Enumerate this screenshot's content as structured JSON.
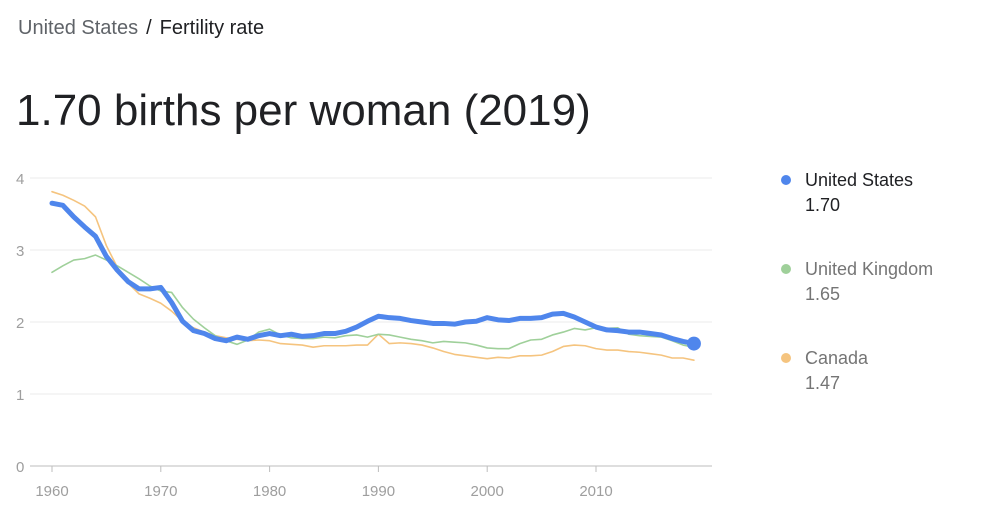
{
  "breadcrumb": {
    "parent": "United States",
    "separator": "/",
    "current": "Fertility rate"
  },
  "headline": "1.70 births per woman (2019)",
  "chart_data": {
    "type": "line",
    "x_start": 1960,
    "x_end": 2019,
    "xticks": [
      "1960",
      "1970",
      "1980",
      "1990",
      "2000",
      "2010"
    ],
    "yticks": [
      "0",
      "1",
      "2",
      "3",
      "4"
    ],
    "ylim": [
      0,
      4
    ],
    "grid": true,
    "legend_placement": "right",
    "series": [
      {
        "name": "United States",
        "latest": "1.70",
        "color": "#4f86ec",
        "values": [
          3.65,
          3.62,
          3.46,
          3.32,
          3.19,
          2.91,
          2.72,
          2.56,
          2.46,
          2.46,
          2.48,
          2.27,
          2.01,
          1.88,
          1.84,
          1.77,
          1.74,
          1.79,
          1.76,
          1.81,
          1.84,
          1.81,
          1.83,
          1.8,
          1.81,
          1.84,
          1.84,
          1.87,
          1.93,
          2.01,
          2.08,
          2.06,
          2.05,
          2.02,
          2.0,
          1.98,
          1.98,
          1.97,
          2.0,
          2.01,
          2.06,
          2.03,
          2.02,
          2.05,
          2.05,
          2.06,
          2.11,
          2.12,
          2.07,
          2.0,
          1.93,
          1.89,
          1.88,
          1.86,
          1.86,
          1.84,
          1.82,
          1.77,
          1.73,
          1.7
        ]
      },
      {
        "name": "United Kingdom",
        "latest": "1.65",
        "color": "#9fd09a",
        "values": [
          2.69,
          2.78,
          2.86,
          2.88,
          2.93,
          2.86,
          2.78,
          2.69,
          2.6,
          2.5,
          2.43,
          2.41,
          2.2,
          2.04,
          1.92,
          1.81,
          1.74,
          1.69,
          1.75,
          1.86,
          1.9,
          1.82,
          1.78,
          1.77,
          1.77,
          1.79,
          1.78,
          1.81,
          1.82,
          1.79,
          1.83,
          1.82,
          1.79,
          1.76,
          1.74,
          1.71,
          1.73,
          1.72,
          1.71,
          1.68,
          1.64,
          1.63,
          1.63,
          1.7,
          1.75,
          1.76,
          1.82,
          1.86,
          1.91,
          1.89,
          1.92,
          1.91,
          1.92,
          1.83,
          1.81,
          1.8,
          1.79,
          1.74,
          1.68,
          1.65
        ]
      },
      {
        "name": "Canada",
        "latest": "1.47",
        "color": "#f5c47f",
        "values": [
          3.81,
          3.76,
          3.69,
          3.61,
          3.46,
          3.06,
          2.76,
          2.54,
          2.39,
          2.33,
          2.26,
          2.15,
          2.01,
          1.92,
          1.86,
          1.81,
          1.78,
          1.76,
          1.74,
          1.75,
          1.74,
          1.7,
          1.69,
          1.68,
          1.65,
          1.67,
          1.67,
          1.67,
          1.68,
          1.68,
          1.83,
          1.7,
          1.71,
          1.7,
          1.68,
          1.64,
          1.59,
          1.55,
          1.53,
          1.51,
          1.49,
          1.51,
          1.5,
          1.53,
          1.53,
          1.54,
          1.59,
          1.66,
          1.68,
          1.67,
          1.63,
          1.61,
          1.61,
          1.59,
          1.58,
          1.56,
          1.54,
          1.5,
          1.5,
          1.47
        ]
      }
    ]
  }
}
